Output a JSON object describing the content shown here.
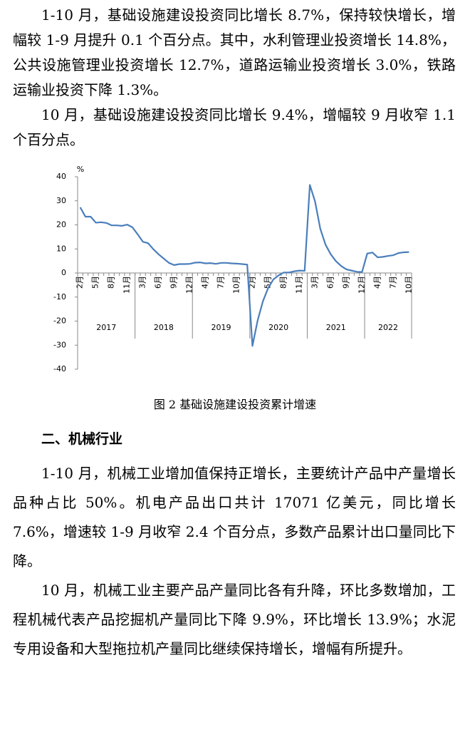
{
  "paragraphs_top": [
    "1-10 月，基础设施建设投资同比增长 8.7%，保持较快增长，增幅较 1-9 月提升 0.1 个百分点。其中，水利管理业投资增长 14.8%，公共设施管理业投资增长 12.7%，道路运输业投资增长 3.0%，铁路运输业投资下降 1.3%。",
    "10 月，基础设施建设投资同比增长 9.4%，增幅较 9 月收窄 1.1 个百分点。"
  ],
  "chart_data": {
    "type": "line",
    "ylabel": "%",
    "categories": [
      "2月",
      null,
      null,
      "5月",
      null,
      null,
      "8月",
      null,
      null,
      "11月",
      null,
      null,
      "3月",
      null,
      null,
      "6月",
      null,
      null,
      "9月",
      null,
      null,
      "12月",
      null,
      null,
      "4月",
      null,
      null,
      "7月",
      null,
      null,
      "10月",
      null,
      null,
      "2月",
      null,
      null,
      "5月",
      null,
      null,
      "8月",
      null,
      null,
      "11月",
      null,
      null,
      "3月",
      null,
      null,
      "6月",
      null,
      null,
      "9月",
      null,
      null,
      "12月",
      null,
      null,
      "4月",
      null,
      null,
      "7月",
      null,
      null,
      "10月"
    ],
    "year_groups": [
      {
        "label": "2017",
        "count": 11
      },
      {
        "label": "2018",
        "count": 11
      },
      {
        "label": "2019",
        "count": 11
      },
      {
        "label": "2020",
        "count": 11
      },
      {
        "label": "2021",
        "count": 11
      },
      {
        "label": "2022",
        "count": 9
      }
    ],
    "series": [
      {
        "color": "#4a7ebb",
        "values": [
          27.3,
          23.4,
          23.4,
          20.9,
          21.1,
          20.8,
          19.8,
          19.8,
          19.6,
          20.1,
          19.0,
          16.1,
          13.0,
          12.4,
          9.9,
          7.8,
          6.0,
          4.2,
          3.3,
          3.7,
          3.7,
          3.8,
          4.3,
          4.4,
          4.0,
          4.1,
          3.8,
          4.2,
          4.2,
          4.0,
          3.9,
          3.7,
          3.5,
          -30.3,
          -19.7,
          -11.8,
          -6.3,
          -2.7,
          -1.0,
          0.2,
          0.2,
          0.7,
          1.0,
          0.9,
          36.6,
          29.7,
          18.4,
          11.8,
          7.8,
          4.9,
          2.9,
          1.5,
          1.0,
          0.5,
          0.4,
          8.1,
          8.5,
          6.5,
          6.7,
          7.1,
          7.4,
          8.3,
          8.6,
          8.7
        ]
      }
    ],
    "ylim": [
      -40,
      40
    ],
    "yticks": [
      -40,
      -30,
      -20,
      -10,
      0,
      10,
      20,
      30,
      40
    ]
  },
  "caption": "图 2 基础设施建设投资累计增速",
  "section_heading": "二、机械行业",
  "paragraphs_bottom": [
    "1-10 月，机械工业增加值保持正增长，主要统计产品中产量增长品种占比 50%。机电产品出口共计 17071 亿美元，同比增长 7.6%，增速较 1-9 月收窄 2.4 个百分点，多数产品累计出口量同比下降。",
    "10 月，机械工业主要产品产量同比各有升降，环比多数增加，工程机械代表产品挖掘机产量同比下降 9.9%，环比增长 13.9%；水泥专用设备和大型拖拉机产量同比继续保持增长，增幅有所提升。"
  ]
}
